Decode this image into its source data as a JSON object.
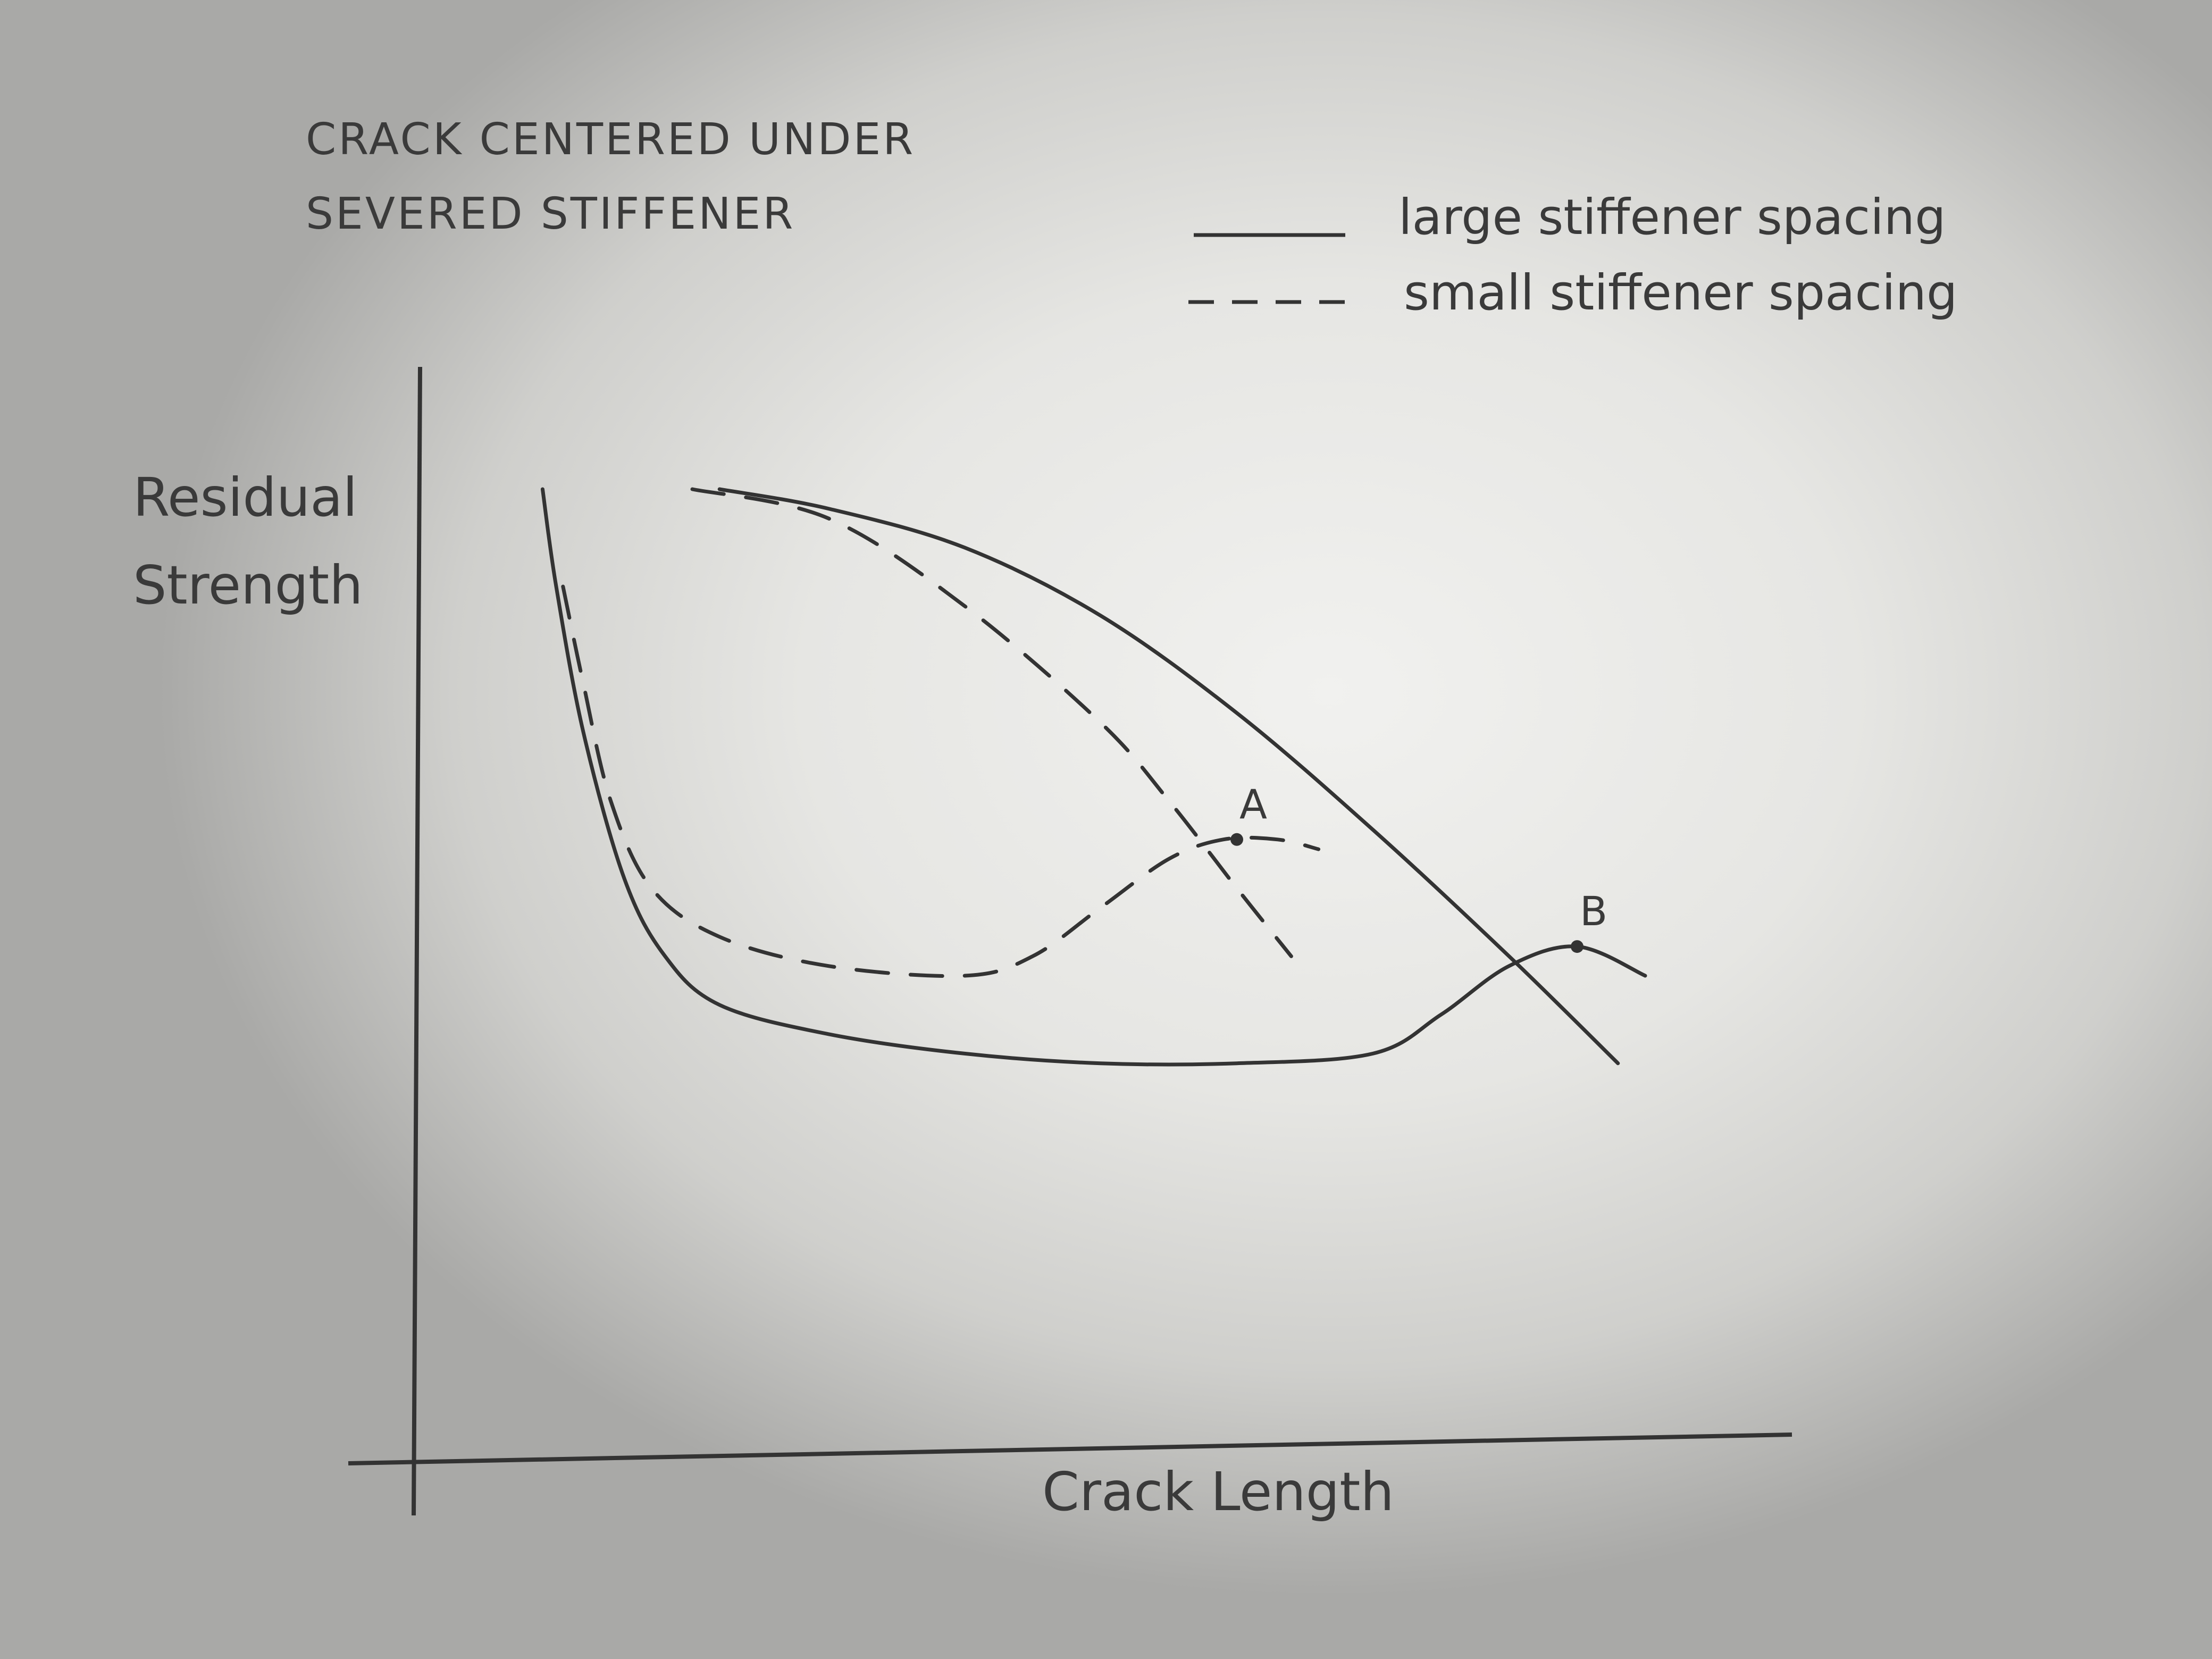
{
  "chart_data": {
    "type": "line",
    "title": "CRACK CENTERED UNDER SEVERED STIFFENER",
    "title_lines": [
      "CRACK CENTERED UNDER",
      "SEVERED STIFFENER"
    ],
    "xlabel": "Crack Length",
    "ylabel": "Residual Strength",
    "ylabel_lines": [
      "Residual",
      "Strength"
    ],
    "axis_ticks": "none",
    "grid": false,
    "legend_placement": "top-right",
    "legend": [
      {
        "label": "large stiffener spacing",
        "style": "solid"
      },
      {
        "label": "small stiffener spacing",
        "style": "dashed"
      }
    ],
    "xlim": [
      0,
      100
    ],
    "ylim": [
      0,
      100
    ],
    "series": [
      {
        "name": "large stiffener spacing",
        "style": "solid",
        "curves": [
          {
            "role": "stiffened panel residual strength",
            "points": [
              [
                9,
                100
              ],
              [
                10,
                90
              ],
              [
                12,
                75
              ],
              [
                15,
                60
              ],
              [
                18,
                52
              ],
              [
                22,
                47
              ],
              [
                30,
                44
              ],
              [
                40,
                42
              ],
              [
                50,
                41
              ],
              [
                60,
                41
              ],
              [
                70,
                42
              ],
              [
                75,
                46
              ],
              [
                80,
                51
              ],
              [
                85,
                53
              ],
              [
                90,
                50
              ]
            ]
          },
          {
            "role": "stiffener failure",
            "points": [
              [
                22,
                100
              ],
              [
                30,
                98
              ],
              [
                40,
                94
              ],
              [
                50,
                87
              ],
              [
                60,
                77
              ],
              [
                70,
                65
              ],
              [
                80,
                52
              ],
              [
                88,
                41
              ]
            ]
          }
        ]
      },
      {
        "name": "small stiffener spacing",
        "style": "dashed",
        "curves": [
          {
            "role": "stiffened panel residual strength",
            "points": [
              [
                10.5,
                90
              ],
              [
                12,
                80
              ],
              [
                14,
                68
              ],
              [
                17,
                59
              ],
              [
                22,
                54
              ],
              [
                30,
                51
              ],
              [
                40,
                50
              ],
              [
                45,
                52
              ],
              [
                50,
                57
              ],
              [
                55,
                62
              ],
              [
                59,
                64
              ],
              [
                63,
                64
              ],
              [
                66,
                63
              ]
            ]
          },
          {
            "role": "stiffener failure",
            "points": [
              [
                20,
                100
              ],
              [
                30,
                97
              ],
              [
                40,
                88
              ],
              [
                50,
                76
              ],
              [
                55,
                68
              ],
              [
                60,
                59
              ],
              [
                64,
                52
              ]
            ]
          }
        ]
      }
    ],
    "annotations": [
      {
        "label": "A",
        "x": 60,
        "y": 64
      },
      {
        "label": "B",
        "x": 85,
        "y": 53
      }
    ]
  }
}
